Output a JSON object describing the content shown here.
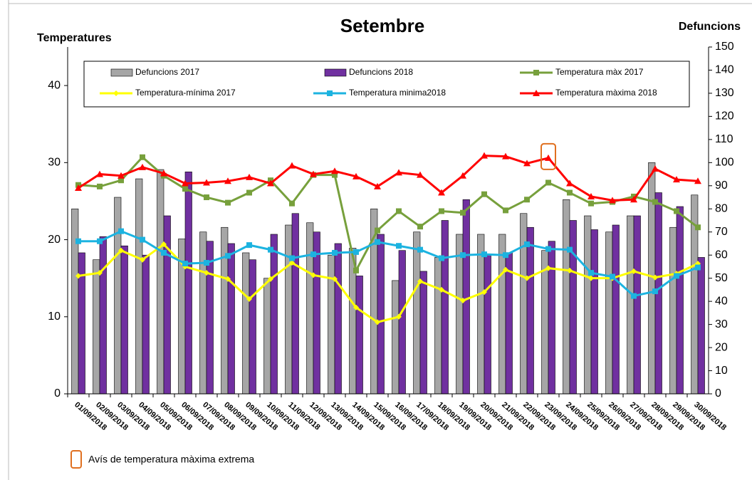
{
  "chart_data": {
    "type": "bar-line",
    "title": "Setembre",
    "ylabel": "Temperatures",
    "y2label": "Defuncions",
    "categories": [
      "01/09/2018",
      "02/09/2018",
      "03/09/2018",
      "04/09/2018",
      "05/09/2018",
      "06/09/2018",
      "07/09/2018",
      "08/09/2018",
      "09/09/2018",
      "10/09/2018",
      "11/09/2018",
      "12/09/2018",
      "13/09/2018",
      "14/09/2018",
      "15/09/2018",
      "16/09/2018",
      "17/09/2018",
      "18/09/2018",
      "19/09/2018",
      "20/09/2018",
      "21/09/2018",
      "22/09/2018",
      "23/09/2018",
      "24/09/2018",
      "25/09/2018",
      "26/09/2018",
      "27/09/2018",
      "28/09/2018",
      "29/09/2018",
      "30/09/2018"
    ],
    "series": [
      {
        "name": "Defuncions 2017",
        "kind": "bar",
        "axis": "y2",
        "color": "#a6a6a6",
        "values": [
          80,
          58,
          85,
          93,
          97,
          67,
          70,
          72,
          61,
          50,
          73,
          74,
          60,
          63,
          80,
          49,
          70,
          59,
          69,
          69,
          69,
          78,
          62,
          84,
          77,
          70,
          77,
          100,
          72,
          86
        ]
      },
      {
        "name": "Defuncions 2018",
        "kind": "bar",
        "axis": "y2",
        "color": "#7030a0",
        "values": [
          61,
          68,
          64,
          60,
          77,
          96,
          66,
          65,
          58,
          69,
          78,
          70,
          65,
          51,
          69,
          62,
          53,
          75,
          84,
          60,
          61,
          72,
          66,
          75,
          71,
          73,
          77,
          87,
          81,
          59
        ]
      },
      {
        "name": "Temperatura màx 2017",
        "kind": "line",
        "axis": "y",
        "marker": "square",
        "color": "#77a03c",
        "values": [
          27.1,
          26.9,
          27.7,
          30.7,
          28.3,
          26.6,
          25.5,
          24.8,
          26.1,
          27.7,
          24.7,
          28.4,
          28.4,
          16.0,
          21.2,
          23.7,
          21.7,
          23.7,
          23.5,
          25.9,
          23.8,
          25.2,
          27.4,
          26.1,
          24.7,
          24.9,
          25.6,
          24.9,
          23.7,
          21.6
        ]
      },
      {
        "name": "Temperatura-mínima 2017",
        "kind": "line",
        "axis": "y",
        "marker": "diamond",
        "color": "#ffff00",
        "values": [
          15.3,
          15.7,
          18.6,
          17.4,
          19.4,
          16.5,
          15.7,
          14.9,
          12.3,
          14.9,
          17.0,
          15.4,
          14.9,
          11.2,
          9.3,
          10.0,
          14.6,
          13.5,
          12.1,
          13.2,
          16.1,
          15.0,
          16.3,
          16.0,
          15.0,
          15.0,
          15.9,
          15.1,
          15.6,
          16.9
        ]
      },
      {
        "name": "Temperatura minima2018",
        "kind": "line",
        "axis": "y",
        "marker": "square",
        "color": "#1cb3e0",
        "values": [
          19.8,
          19.8,
          21.1,
          20.0,
          18.3,
          16.9,
          17.0,
          17.9,
          19.3,
          18.7,
          17.6,
          18.1,
          18.3,
          18.4,
          19.7,
          19.2,
          18.7,
          17.6,
          18.0,
          18.1,
          18.0,
          19.4,
          18.8,
          18.7,
          15.7,
          15.2,
          12.7,
          13.3,
          15.3,
          16.4
        ]
      },
      {
        "name": "Temperatura màxima 2018",
        "kind": "line",
        "axis": "y",
        "marker": "triangle",
        "color": "#ff0000",
        "values": [
          26.7,
          28.5,
          28.3,
          29.4,
          28.6,
          27.3,
          27.4,
          27.6,
          28.1,
          27.3,
          29.6,
          28.5,
          28.9,
          28.2,
          26.9,
          28.7,
          28.4,
          26.1,
          28.3,
          30.9,
          30.8,
          29.9,
          30.6,
          27.3,
          25.6,
          25.1,
          25.2,
          29.2,
          27.8,
          27.6
        ]
      }
    ],
    "ylim": [
      0,
      45
    ],
    "yticks": [
      0,
      10,
      20,
      30,
      40
    ],
    "y2lim": [
      0,
      150
    ],
    "y2ticks": [
      0,
      10,
      20,
      30,
      40,
      50,
      60,
      70,
      80,
      90,
      100,
      110,
      120,
      130,
      140,
      150
    ],
    "annotation": {
      "text": "Avís de temperatura màxima extrema",
      "category": "23/09/2018",
      "series": "Temperatura màxima 2018",
      "color": "#e07020"
    }
  }
}
